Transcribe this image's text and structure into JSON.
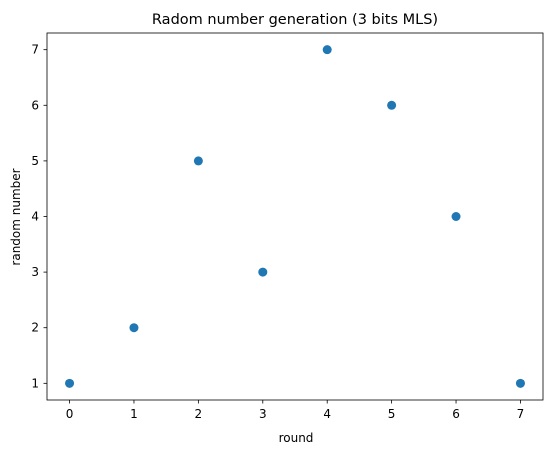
{
  "chart_data": {
    "type": "scatter",
    "title": "Radom number generation (3 bits MLS)",
    "xlabel": "round",
    "ylabel": "random number",
    "x": [
      0,
      1,
      2,
      3,
      4,
      5,
      6,
      7
    ],
    "y": [
      1,
      2,
      5,
      3,
      7,
      6,
      4,
      1
    ],
    "xticks": [
      0,
      1,
      2,
      3,
      4,
      5,
      6,
      7
    ],
    "yticks": [
      1,
      2,
      3,
      4,
      5,
      6,
      7
    ],
    "xlim": [
      -0.35,
      7.35
    ],
    "ylim": [
      0.7,
      7.3
    ],
    "grid": false,
    "marker_color": "#1f77b4"
  }
}
